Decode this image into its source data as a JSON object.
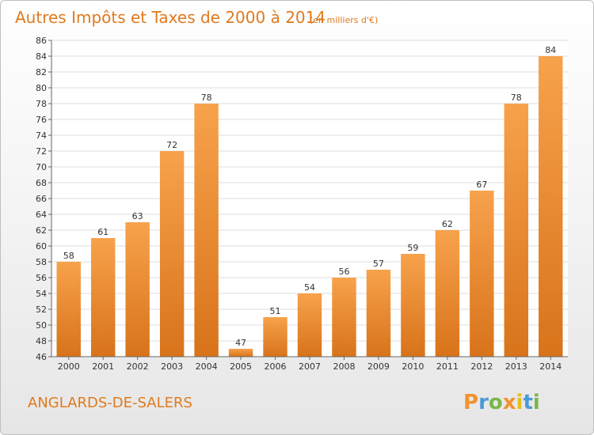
{
  "chart_data": {
    "type": "bar",
    "title": "Autres Impôts et Taxes de 2000 à 2014",
    "subtitle": "(en milliers d'€)",
    "xlabel": "",
    "ylabel": "",
    "categories": [
      "2000",
      "2001",
      "2002",
      "2003",
      "2004",
      "2005",
      "2006",
      "2007",
      "2008",
      "2009",
      "2010",
      "2011",
      "2012",
      "2013",
      "2014"
    ],
    "values": [
      58,
      61,
      63,
      72,
      78,
      47,
      51,
      54,
      56,
      57,
      59,
      62,
      67,
      78,
      84
    ],
    "ylim": [
      46,
      86
    ],
    "ytick_step": 2,
    "grid": "horizontal",
    "bar_color": "#f0922e",
    "bar_color_dark": "#d8731a"
  },
  "commune": "ANGLARDS-DE-SALERS",
  "logo": {
    "letters": [
      "P",
      "r",
      "o",
      "x",
      "i",
      "t",
      "i"
    ],
    "colors": [
      "#f0922e",
      "#4a9ad8",
      "#7ab648",
      "#f0922e",
      "#e0c020",
      "#4a9ad8",
      "#7ab648"
    ]
  }
}
